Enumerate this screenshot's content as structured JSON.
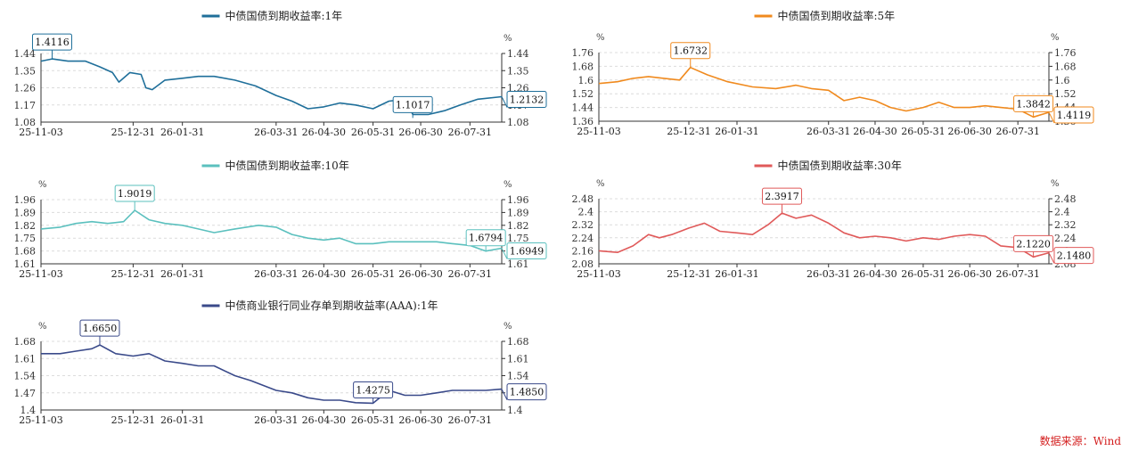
{
  "source": "数据来源：Wind",
  "chart_data": [
    {
      "type": "line",
      "title": "中债国债到期收益率:1年",
      "color": "#1f6f9a",
      "unit_left": "%",
      "unit_right": "%",
      "yticks": [
        1.08,
        1.17,
        1.26,
        1.35,
        1.44
      ],
      "ylim": [
        1.08,
        1.44
      ],
      "xticks": [
        "25-11-03",
        "25-12-31",
        "26-01-31",
        "26-03-31",
        "26-04-30",
        "26-05-31",
        "26-06-30",
        "26-07-31"
      ],
      "xlim": [
        "2025-11-03",
        "2026-08-20"
      ],
      "series": [
        {
          "x": [
            "2025-11-03",
            "2025-11-10",
            "2025-11-20",
            "2025-12-01",
            "2025-12-10",
            "2025-12-18",
            "2025-12-22",
            "2025-12-29",
            "2026-01-05",
            "2026-01-08",
            "2026-01-12",
            "2026-01-20",
            "2026-01-31",
            "2026-02-10",
            "2026-02-20",
            "2026-03-05",
            "2026-03-18",
            "2026-03-31",
            "2026-04-10",
            "2026-04-20",
            "2026-04-30",
            "2026-05-10",
            "2026-05-20",
            "2026-05-31",
            "2026-06-10",
            "2026-06-20",
            "2026-06-25",
            "2026-07-05",
            "2026-07-15",
            "2026-07-25",
            "2026-08-05",
            "2026-08-20"
          ],
          "values": [
            1.4,
            1.4116,
            1.4,
            1.4,
            1.37,
            1.34,
            1.29,
            1.34,
            1.33,
            1.26,
            1.25,
            1.3,
            1.31,
            1.32,
            1.32,
            1.3,
            1.27,
            1.22,
            1.19,
            1.15,
            1.16,
            1.18,
            1.17,
            1.15,
            1.19,
            1.2,
            1.12,
            1.12,
            1.14,
            1.17,
            1.2,
            1.2132
          ]
        }
      ],
      "annotations": [
        {
          "label": "1.4116",
          "x": "2025-11-10",
          "y": 1.4116
        },
        {
          "label": "1.1017",
          "x": "2026-06-25",
          "y": 1.1017
        },
        {
          "label": "1.2132",
          "x": "2026-08-20",
          "y": 1.2132,
          "side": "right"
        }
      ]
    },
    {
      "type": "line",
      "title": "中债国债到期收益率:5年",
      "color": "#f08a1e",
      "unit_left": "%",
      "unit_right": "%",
      "yticks": [
        1.36,
        1.44,
        1.52,
        1.6,
        1.68,
        1.76
      ],
      "ylim": [
        1.36,
        1.76
      ],
      "xticks": [
        "25-11-03",
        "25-12-31",
        "26-01-31",
        "26-03-31",
        "26-04-30",
        "26-05-31",
        "26-06-30",
        "26-07-31"
      ],
      "xlim": [
        "2025-11-03",
        "2026-08-20"
      ],
      "series": [
        {
          "x": [
            "2025-11-03",
            "2025-11-15",
            "2025-11-25",
            "2025-12-05",
            "2025-12-15",
            "2025-12-25",
            "2026-01-01",
            "2026-01-12",
            "2026-01-25",
            "2026-02-10",
            "2026-02-25",
            "2026-03-10",
            "2026-03-20",
            "2026-03-31",
            "2026-04-10",
            "2026-04-20",
            "2026-04-30",
            "2026-05-10",
            "2026-05-20",
            "2026-05-31",
            "2026-06-10",
            "2026-06-20",
            "2026-06-30",
            "2026-07-10",
            "2026-07-20",
            "2026-07-31",
            "2026-08-10",
            "2026-08-20"
          ],
          "values": [
            1.58,
            1.59,
            1.61,
            1.62,
            1.61,
            1.6,
            1.6732,
            1.63,
            1.59,
            1.56,
            1.55,
            1.57,
            1.55,
            1.54,
            1.48,
            1.5,
            1.48,
            1.44,
            1.42,
            1.44,
            1.47,
            1.44,
            1.44,
            1.45,
            1.44,
            1.43,
            1.3842,
            1.4119
          ]
        }
      ],
      "annotations": [
        {
          "label": "1.6732",
          "x": "2026-01-01",
          "y": 1.6732
        },
        {
          "label": "1.3842",
          "x": "2026-08-10",
          "y": 1.3842
        },
        {
          "label": "1.4119",
          "x": "2026-08-20",
          "y": 1.4119,
          "side": "right"
        }
      ]
    },
    {
      "type": "line",
      "title": "中债国债到期收益率:10年",
      "color": "#5bc0be",
      "unit_left": "%",
      "unit_right": "%",
      "yticks": [
        1.61,
        1.68,
        1.75,
        1.82,
        1.89,
        1.96
      ],
      "ylim": [
        1.61,
        1.96
      ],
      "xticks": [
        "25-11-03",
        "25-12-31",
        "26-01-31",
        "26-03-31",
        "26-04-30",
        "26-05-31",
        "26-06-30",
        "26-07-31"
      ],
      "xlim": [
        "2025-11-03",
        "2026-08-20"
      ],
      "series": [
        {
          "x": [
            "2025-11-03",
            "2025-11-15",
            "2025-11-25",
            "2025-12-05",
            "2025-12-15",
            "2025-12-25",
            "2026-01-01",
            "2026-01-10",
            "2026-01-20",
            "2026-01-31",
            "2026-02-10",
            "2026-02-20",
            "2026-03-05",
            "2026-03-20",
            "2026-03-31",
            "2026-04-10",
            "2026-04-20",
            "2026-04-30",
            "2026-05-10",
            "2026-05-20",
            "2026-05-31",
            "2026-06-10",
            "2026-06-20",
            "2026-06-30",
            "2026-07-10",
            "2026-07-20",
            "2026-07-31",
            "2026-08-10",
            "2026-08-20"
          ],
          "values": [
            1.8,
            1.81,
            1.83,
            1.84,
            1.83,
            1.84,
            1.9019,
            1.85,
            1.83,
            1.82,
            1.8,
            1.78,
            1.8,
            1.82,
            1.81,
            1.77,
            1.75,
            1.74,
            1.75,
            1.72,
            1.72,
            1.73,
            1.73,
            1.73,
            1.73,
            1.72,
            1.71,
            1.6794,
            1.6949
          ]
        }
      ],
      "annotations": [
        {
          "label": "1.9019",
          "x": "2026-01-01",
          "y": 1.9019
        },
        {
          "label": "1.6794",
          "x": "2026-08-10",
          "y": 1.6794
        },
        {
          "label": "1.6949",
          "x": "2026-08-20",
          "y": 1.6949,
          "side": "right"
        }
      ]
    },
    {
      "type": "line",
      "title": "中债国债到期收益率:30年",
      "color": "#e05a5a",
      "unit_left": "%",
      "unit_right": "%",
      "yticks": [
        2.08,
        2.16,
        2.24,
        2.32,
        2.4,
        2.48
      ],
      "ylim": [
        2.08,
        2.48
      ],
      "xticks": [
        "25-11-03",
        "25-12-31",
        "26-01-31",
        "26-03-31",
        "26-04-30",
        "26-05-31",
        "26-06-30",
        "26-07-31"
      ],
      "xlim": [
        "2025-11-03",
        "2026-08-20"
      ],
      "series": [
        {
          "x": [
            "2025-11-03",
            "2025-11-15",
            "2025-11-25",
            "2025-12-05",
            "2025-12-12",
            "2025-12-20",
            "2025-12-31",
            "2026-01-10",
            "2026-01-20",
            "2026-01-31",
            "2026-02-10",
            "2026-02-20",
            "2026-03-01",
            "2026-03-10",
            "2026-03-20",
            "2026-03-31",
            "2026-04-10",
            "2026-04-20",
            "2026-04-30",
            "2026-05-10",
            "2026-05-20",
            "2026-05-31",
            "2026-06-10",
            "2026-06-20",
            "2026-06-30",
            "2026-07-10",
            "2026-07-20",
            "2026-07-31",
            "2026-08-10",
            "2026-08-20"
          ],
          "values": [
            2.16,
            2.15,
            2.19,
            2.26,
            2.24,
            2.26,
            2.3,
            2.33,
            2.28,
            2.27,
            2.26,
            2.32,
            2.3917,
            2.36,
            2.38,
            2.33,
            2.27,
            2.24,
            2.25,
            2.24,
            2.22,
            2.24,
            2.23,
            2.25,
            2.26,
            2.25,
            2.19,
            2.18,
            2.122,
            2.148
          ]
        }
      ],
      "annotations": [
        {
          "label": "2.3917",
          "x": "2026-03-01",
          "y": 2.3917
        },
        {
          "label": "2.1220",
          "x": "2026-08-10",
          "y": 2.122
        },
        {
          "label": "2.1480",
          "x": "2026-08-20",
          "y": 2.148,
          "side": "right"
        }
      ]
    },
    {
      "type": "line",
      "title": "中债商业银行同业存单到期收益率(AAA):1年",
      "color": "#3a4a8a",
      "unit_left": "%",
      "unit_right": "%",
      "yticks": [
        1.4,
        1.47,
        1.54,
        1.61,
        1.68
      ],
      "ylim": [
        1.4,
        1.68
      ],
      "xticks": [
        "25-11-03",
        "25-12-31",
        "26-01-31",
        "26-03-31",
        "26-04-30",
        "26-05-31",
        "26-06-30",
        "26-07-31"
      ],
      "xlim": [
        "2025-11-03",
        "2026-08-20"
      ],
      "series": [
        {
          "x": [
            "2025-11-03",
            "2025-11-15",
            "2025-11-25",
            "2025-12-05",
            "2025-12-10",
            "2025-12-20",
            "2025-12-31",
            "2026-01-10",
            "2026-01-20",
            "2026-01-31",
            "2026-02-10",
            "2026-02-20",
            "2026-03-05",
            "2026-03-15",
            "2026-03-31",
            "2026-04-10",
            "2026-04-20",
            "2026-04-30",
            "2026-05-10",
            "2026-05-20",
            "2026-05-31",
            "2026-06-10",
            "2026-06-20",
            "2026-06-30",
            "2026-07-10",
            "2026-07-20",
            "2026-07-31",
            "2026-08-10",
            "2026-08-20"
          ],
          "values": [
            1.63,
            1.63,
            1.64,
            1.65,
            1.665,
            1.63,
            1.62,
            1.63,
            1.6,
            1.59,
            1.58,
            1.58,
            1.54,
            1.52,
            1.48,
            1.47,
            1.45,
            1.44,
            1.44,
            1.43,
            1.4275,
            1.48,
            1.46,
            1.46,
            1.47,
            1.48,
            1.48,
            1.48,
            1.485
          ]
        }
      ],
      "annotations": [
        {
          "label": "1.6650",
          "x": "2025-12-10",
          "y": 1.665
        },
        {
          "label": "1.4275",
          "x": "2026-05-31",
          "y": 1.4275
        },
        {
          "label": "1.4850",
          "x": "2026-08-20",
          "y": 1.485,
          "side": "right"
        }
      ]
    }
  ]
}
